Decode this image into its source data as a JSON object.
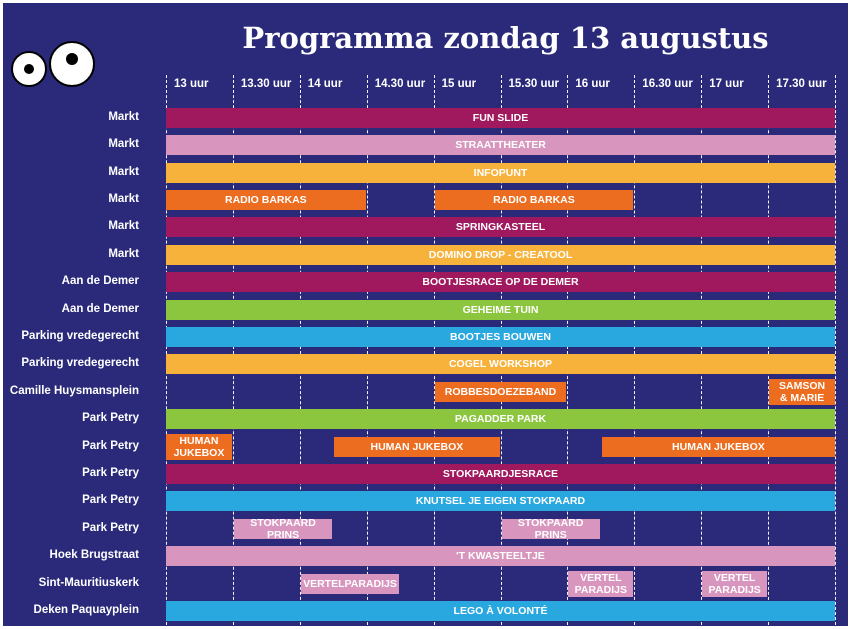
{
  "title": "Programma zondag 13 augustus",
  "times": [
    "13 uur",
    "13.30 uur",
    "14 uur",
    "14.30 uur",
    "15 uur",
    "15.30 uur",
    "16 uur",
    "16.30 uur",
    "17 uur",
    "17.30 uur"
  ],
  "colors": {
    "purple": "#a0195e",
    "pink": "#d896be",
    "yellow": "#f7b23b",
    "orange": "#ec6d1f",
    "green": "#8cc63f",
    "blue": "#29a7df",
    "background": "#2b2a7a"
  },
  "rows": [
    {
      "location": "Markt",
      "events": [
        {
          "label": "FUN SLIDE",
          "start": 0,
          "end": 10,
          "color": "purple"
        }
      ]
    },
    {
      "location": "Markt",
      "events": [
        {
          "label": "STRAATTHEATER",
          "start": 0,
          "end": 10,
          "color": "pink"
        }
      ]
    },
    {
      "location": "Markt",
      "events": [
        {
          "label": "INFOPUNT",
          "start": 0,
          "end": 10,
          "color": "yellow"
        }
      ]
    },
    {
      "location": "Markt",
      "events": [
        {
          "label": "RADIO BARKAS",
          "start": 0,
          "end": 3,
          "color": "orange"
        },
        {
          "label": "RADIO BARKAS",
          "start": 4,
          "end": 7,
          "color": "orange"
        }
      ]
    },
    {
      "location": "Markt",
      "events": [
        {
          "label": "SPRINGKASTEEL",
          "start": 0,
          "end": 10,
          "color": "purple"
        }
      ]
    },
    {
      "location": "Markt",
      "events": [
        {
          "label": "DOMINO DROP - CREATOOL",
          "start": 0,
          "end": 10,
          "color": "yellow"
        }
      ]
    },
    {
      "location": "Aan de Demer",
      "events": [
        {
          "label": "BOOTJESRACE OP DE DEMER",
          "start": 0,
          "end": 10,
          "color": "purple"
        }
      ]
    },
    {
      "location": "Aan de Demer",
      "events": [
        {
          "label": "GEHEIME TUIN",
          "start": 0,
          "end": 10,
          "color": "green"
        }
      ]
    },
    {
      "location": "Parking vredegerecht",
      "events": [
        {
          "label": "BOOTJES BOUWEN",
          "start": 0,
          "end": 10,
          "color": "blue"
        }
      ]
    },
    {
      "location": "Parking vredegerecht",
      "events": [
        {
          "label": "COGEL WORKSHOP",
          "start": 0,
          "end": 10,
          "color": "yellow"
        }
      ]
    },
    {
      "location": "Camille Huysmansplein",
      "events": [
        {
          "label": "ROBBESDOEZEBAND",
          "start": 4,
          "end": 6,
          "color": "orange"
        },
        {
          "label": "SAMSON\n& MARIE",
          "start": 9,
          "end": 10,
          "color": "orange"
        }
      ]
    },
    {
      "location": "Park Petry",
      "events": [
        {
          "label": "PAGADDER PARK",
          "start": 0,
          "end": 10,
          "color": "green"
        }
      ]
    },
    {
      "location": "Park Petry",
      "events": [
        {
          "label": "HUMAN\nJUKEBOX",
          "start": 0,
          "end": 1,
          "color": "orange"
        },
        {
          "label": "HUMAN JUKEBOX",
          "start": 2.5,
          "end": 5,
          "color": "orange"
        },
        {
          "label": "HUMAN JUKEBOX",
          "start": 6.5,
          "end": 10,
          "color": "orange"
        }
      ]
    },
    {
      "location": "Park Petry",
      "events": [
        {
          "label": "STOKPAARDJESRACE",
          "start": 0,
          "end": 10,
          "color": "purple"
        }
      ]
    },
    {
      "location": "Park Petry",
      "events": [
        {
          "label": "KNUTSEL JE EIGEN STOKPAARD",
          "start": 0,
          "end": 10,
          "color": "blue"
        }
      ]
    },
    {
      "location": "Park Petry",
      "events": [
        {
          "label": "STOKPAARD PRINS",
          "start": 1,
          "end": 2.5,
          "color": "pink"
        },
        {
          "label": "STOKPAARD PRINS",
          "start": 5,
          "end": 6.5,
          "color": "pink"
        }
      ]
    },
    {
      "location": "Hoek Brugstraat",
      "events": [
        {
          "label": "'T KWASTEELTJE",
          "start": 0,
          "end": 10,
          "color": "pink"
        }
      ]
    },
    {
      "location": "Sint-Mauritiuskerk",
      "events": [
        {
          "label": "VERTELPARADIJS",
          "start": 2,
          "end": 3.5,
          "color": "pink"
        },
        {
          "label": "VERTEL\nPARADIJS",
          "start": 6,
          "end": 7,
          "color": "pink"
        },
        {
          "label": "VERTEL\nPARADIJS",
          "start": 8,
          "end": 9,
          "color": "pink"
        }
      ]
    },
    {
      "location": "Deken Paquayplein",
      "events": [
        {
          "label": "LEGO À VOLONTÉ",
          "start": 0,
          "end": 10,
          "color": "blue"
        }
      ]
    }
  ]
}
